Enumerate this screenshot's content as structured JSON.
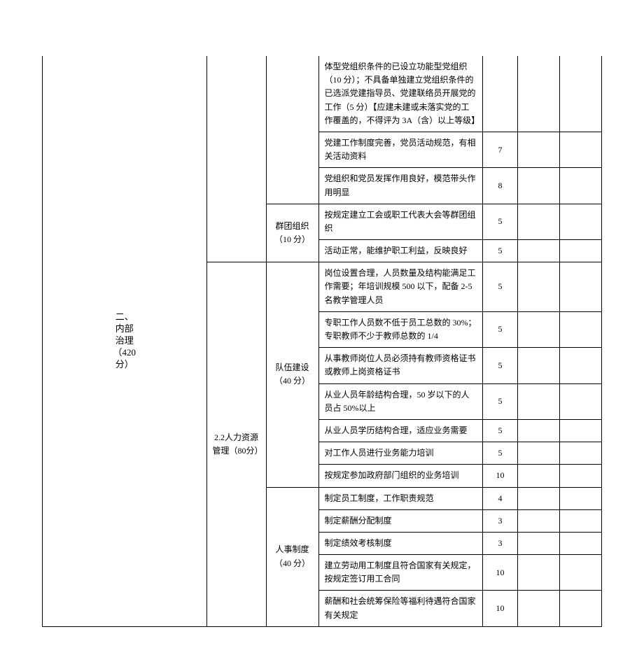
{
  "table": {
    "category": "二、内部治理（420分）",
    "category_lines": [
      "二、",
      "内部",
      "治理",
      "（420",
      "分）"
    ],
    "rows": [
      {
        "content": "体型党组织条件的已设立功能型党组织（10 分）；不具备单独建立党组织条件的已选派党建指导员、党建联络员开展党的工作（5 分）【应建未建或未落实党的工作覆盖的，不得评为 3A（含）以上等级】",
        "score": ""
      },
      {
        "content": "党建工作制度完善，党员活动规范，有相关活动资料",
        "score": "7"
      },
      {
        "content": "党组织和党员发挥作用良好，模范带头作用明显",
        "score": "8"
      },
      {
        "item": "群团组织（10 分）",
        "content": "按规定建立工会或职工代表大会等群团组织",
        "score": "5"
      },
      {
        "content": "活动正常，能维护职工利益，反映良好",
        "score": "5"
      },
      {
        "subcategory": "2.2人力资源管理（80分）",
        "item": "队伍建设（40 分）",
        "content": "岗位设置合理，人员数量及结构能满足工作需要；年培训规模 500 以下，配备 2-5 名教学管理人员",
        "score": "5"
      },
      {
        "content": "专职工作人员数不低于员工总数的 30%；专职教师不少于教师总数的 1/4",
        "score": "5"
      },
      {
        "content": "从事教师岗位人员必须持有教师资格证书或教师上岗资格证书",
        "score": "5"
      },
      {
        "content": "从业人员年龄结构合理，50 岁以下的人员占 50%以上",
        "score": "5"
      },
      {
        "content": "从业人员学历结构合理，适应业务需要",
        "score": "5"
      },
      {
        "content": "对工作人员进行业务能力培训",
        "score": "5"
      },
      {
        "content": "按规定参加政府部门组织的业务培训",
        "score": "10"
      },
      {
        "item": "人事制度（40 分）",
        "content": "制定员工制度，工作职责规范",
        "score": "4"
      },
      {
        "content": "制定薪酬分配制度",
        "score": "3"
      },
      {
        "content": "制定绩效考核制度",
        "score": "3"
      },
      {
        "content": "建立劳动用工制度且符合国家有关规定，按规定签订用工合同",
        "score": "10"
      },
      {
        "content": "薪酬和社会统筹保险等福利待遇符合国家有关规定",
        "score": "10"
      }
    ]
  },
  "styling": {
    "border_color": "#000000",
    "background_color": "#ffffff",
    "text_color": "#000000",
    "font_family": "SimSun",
    "font_size_body": 12,
    "font_size_category": 13,
    "line_height": 1.6,
    "padding_cell": "6px 8px",
    "column_widths": {
      "category": 45,
      "subcategory": 85,
      "item": 75,
      "score": 50,
      "blank1": 60,
      "blank2": 60
    }
  }
}
